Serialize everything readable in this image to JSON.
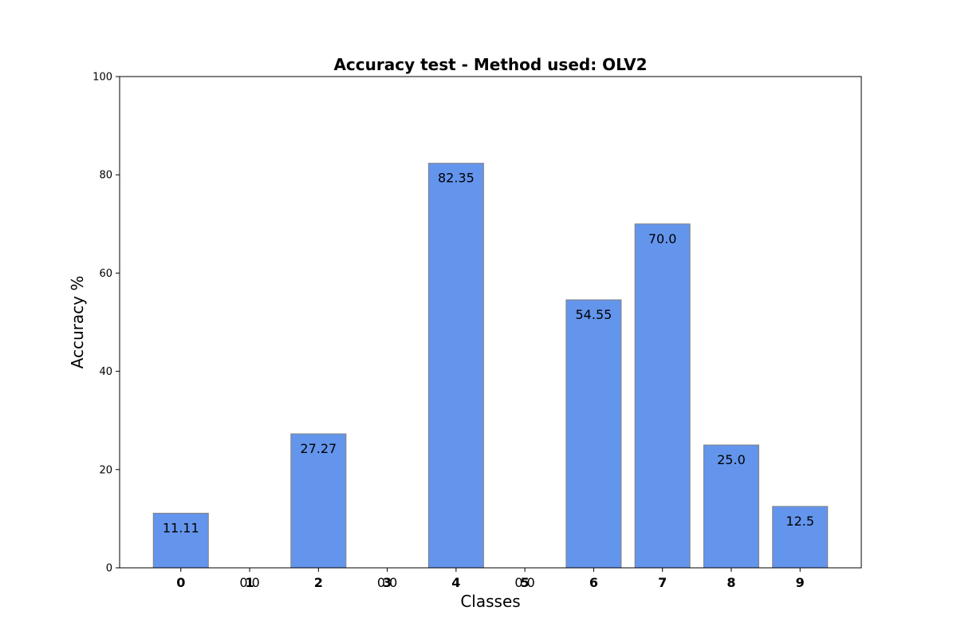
{
  "chart_data": {
    "type": "bar",
    "title": "Accuracy test - Method used: OLV2",
    "xlabel": "Classes",
    "ylabel": "Accuracy %",
    "categories": [
      "0",
      "1",
      "2",
      "3",
      "4",
      "5",
      "6",
      "7",
      "8",
      "9"
    ],
    "values": [
      11.11,
      0.0,
      27.27,
      0.0,
      82.35,
      0.0,
      54.55,
      70.0,
      25.0,
      12.5
    ],
    "data_labels": [
      "11.11",
      "0.0",
      "27.27",
      "0.0",
      "82.35",
      "0.0",
      "54.55",
      "70.0",
      "25.0",
      "12.5"
    ],
    "yticks": [
      "0",
      "20",
      "40",
      "60",
      "80",
      "100"
    ],
    "ylim": [
      0,
      100
    ],
    "grid": false,
    "colors": {
      "bar_fill": "#6495ED",
      "bar_edge": "#808080",
      "axes": "#000000"
    }
  }
}
